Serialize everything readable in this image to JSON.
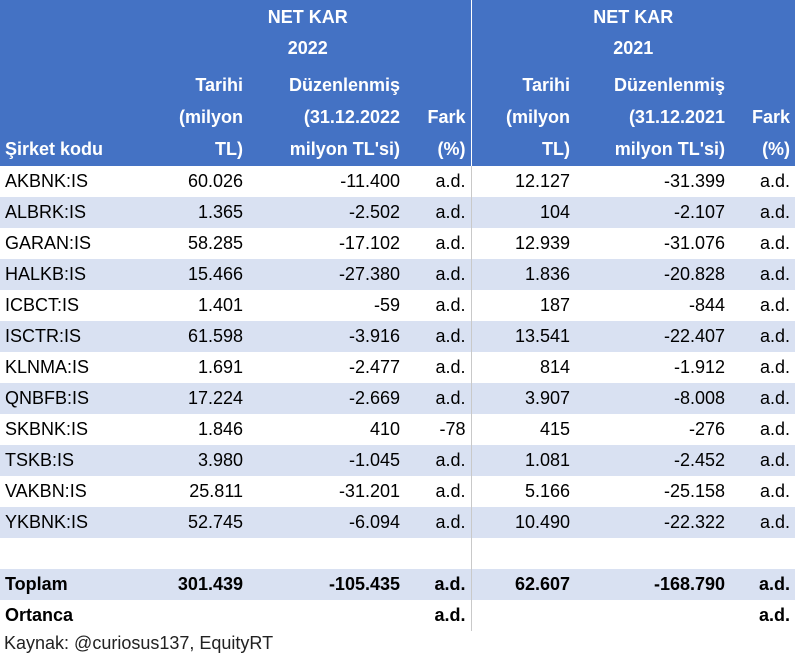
{
  "header": {
    "group_2022": [
      "NET KAR",
      "2022"
    ],
    "group_2021": [
      "NET KAR",
      "2021"
    ],
    "col_code": "Şirket kodu",
    "col_hist_2022": [
      "Tarihi",
      "(milyon",
      "TL)"
    ],
    "col_adj_2022": [
      "Düzenlenmiş",
      "(31.12.2022",
      "milyon TL'si)"
    ],
    "col_diff_2022": [
      "Fark",
      "(%)"
    ],
    "col_hist_2021": [
      "Tarihi",
      "(milyon",
      "TL)"
    ],
    "col_adj_2021": [
      "Düzenlenmiş",
      "(31.12.2021",
      "milyon TL'si)"
    ],
    "col_diff_2021": [
      "Fark",
      "(%)"
    ]
  },
  "rows": [
    {
      "code": "AKBNK:IS",
      "h22": "60.026",
      "a22": "-11.400",
      "f22": "a.d.",
      "h21": "12.127",
      "a21": "-31.399",
      "f21": "a.d."
    },
    {
      "code": "ALBRK:IS",
      "h22": "1.365",
      "a22": "-2.502",
      "f22": "a.d.",
      "h21": "104",
      "a21": "-2.107",
      "f21": "a.d."
    },
    {
      "code": "GARAN:IS",
      "h22": "58.285",
      "a22": "-17.102",
      "f22": "a.d.",
      "h21": "12.939",
      "a21": "-31.076",
      "f21": "a.d."
    },
    {
      "code": "HALKB:IS",
      "h22": "15.466",
      "a22": "-27.380",
      "f22": "a.d.",
      "h21": "1.836",
      "a21": "-20.828",
      "f21": "a.d."
    },
    {
      "code": "ICBCT:IS",
      "h22": "1.401",
      "a22": "-59",
      "f22": "a.d.",
      "h21": "187",
      "a21": "-844",
      "f21": "a.d."
    },
    {
      "code": "ISCTR:IS",
      "h22": "61.598",
      "a22": "-3.916",
      "f22": "a.d.",
      "h21": "13.541",
      "a21": "-22.407",
      "f21": "a.d."
    },
    {
      "code": "KLNMA:IS",
      "h22": "1.691",
      "a22": "-2.477",
      "f22": "a.d.",
      "h21": "814",
      "a21": "-1.912",
      "f21": "a.d."
    },
    {
      "code": "QNBFB:IS",
      "h22": "17.224",
      "a22": "-2.669",
      "f22": "a.d.",
      "h21": "3.907",
      "a21": "-8.008",
      "f21": "a.d."
    },
    {
      "code": "SKBNK:IS",
      "h22": "1.846",
      "a22": "410",
      "f22": "-78",
      "h21": "415",
      "a21": "-276",
      "f21": "a.d."
    },
    {
      "code": "TSKB:IS",
      "h22": "3.980",
      "a22": "-1.045",
      "f22": "a.d.",
      "h21": "1.081",
      "a21": "-2.452",
      "f21": "a.d."
    },
    {
      "code": "VAKBN:IS",
      "h22": "25.811",
      "a22": "-31.201",
      "f22": "a.d.",
      "h21": "5.166",
      "a21": "-25.158",
      "f21": "a.d."
    },
    {
      "code": "YKBNK:IS",
      "h22": "52.745",
      "a22": "-6.094",
      "f22": "a.d.",
      "h21": "10.490",
      "a21": "-22.322",
      "f21": "a.d."
    }
  ],
  "total": {
    "label": "Toplam",
    "h22": "301.439",
    "a22": "-105.435",
    "f22": "a.d.",
    "h21": "62.607",
    "a21": "-168.790",
    "f21": "a.d."
  },
  "median": {
    "label": "Ortanca",
    "f22": "a.d.",
    "f21": "a.d."
  },
  "source": "Kaynak: @curiosus137, EquityRT",
  "colors": {
    "header_bg": "#4472c4",
    "band_bg": "#d9e1f2"
  }
}
